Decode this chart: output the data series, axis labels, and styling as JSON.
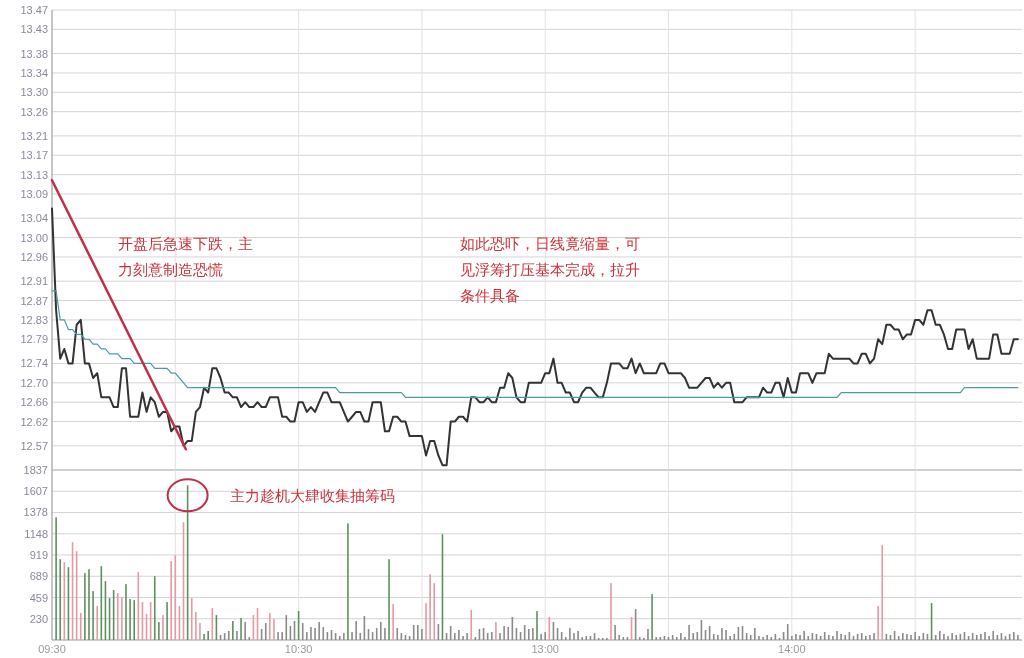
{
  "chart_data": [
    {
      "type": "line",
      "ylim": [
        12.52,
        13.47
      ],
      "yticks": [
        12.57,
        12.62,
        12.66,
        {
          "value": 12.7,
          "label": "12.70"
        },
        12.74,
        12.79,
        12.83,
        12.87,
        12.91,
        12.96,
        {
          "value": 13.0,
          "label": "13.00"
        },
        13.04,
        13.09,
        13.13,
        13.17,
        13.21,
        13.26,
        {
          "value": 13.3,
          "label": "13.30"
        },
        13.34,
        13.38,
        13.43,
        13.47
      ],
      "grid": true,
      "categories": [
        null,
        null,
        null,
        null,
        null,
        null,
        null,
        null,
        null,
        null,
        null,
        null,
        null,
        null,
        null,
        null,
        null,
        null,
        null,
        null,
        null,
        null,
        null,
        null,
        null,
        null,
        null,
        null,
        null,
        null,
        null,
        null,
        null,
        null,
        null,
        null,
        null,
        null,
        null,
        null,
        null,
        null,
        null,
        null,
        null,
        null,
        null,
        null,
        null,
        null,
        null,
        null,
        null,
        null,
        null,
        null,
        null,
        null,
        null,
        null,
        null,
        null,
        null,
        null,
        null,
        null,
        null,
        null,
        null,
        null,
        null,
        null,
        null,
        null,
        null,
        null,
        null,
        null,
        null,
        null,
        null,
        null,
        null,
        null,
        null,
        null,
        null,
        null,
        null,
        null,
        null,
        null,
        null,
        null,
        null,
        null,
        null,
        null,
        null,
        null,
        null,
        null,
        null,
        null,
        null,
        null,
        null,
        null,
        null,
        null,
        null,
        null,
        null,
        null,
        null,
        null,
        null,
        null,
        null,
        null,
        null,
        null,
        null,
        null,
        null,
        null,
        null,
        null,
        null,
        null,
        null,
        null,
        null,
        null,
        null,
        null,
        null,
        null,
        null,
        null,
        null,
        null,
        null,
        null,
        null,
        null,
        null,
        null,
        null,
        null,
        null,
        null,
        null,
        null,
        null,
        null,
        null,
        null,
        null,
        null,
        null,
        null,
        null,
        null,
        null,
        null,
        null,
        null,
        null,
        null,
        null,
        null,
        null,
        null,
        null,
        null,
        null,
        null,
        null,
        null,
        null,
        null,
        null,
        null,
        null,
        null,
        null,
        null,
        null,
        null,
        null,
        null,
        null,
        null,
        null,
        null,
        null,
        null,
        null,
        null,
        null,
        null,
        null,
        null,
        null,
        null,
        null,
        null,
        null,
        null,
        null,
        null,
        null,
        null,
        null,
        null,
        null,
        null,
        null,
        null,
        null,
        null,
        null,
        null,
        null,
        null,
        null,
        null,
        null,
        null,
        null,
        null,
        null,
        null,
        null,
        null
      ],
      "series": [
        {
          "color": "#333333",
          "values": [
            13.06,
            12.85,
            12.75,
            12.77,
            12.74,
            12.74,
            12.82,
            12.83,
            12.74,
            12.74,
            12.71,
            12.72,
            12.67,
            12.67,
            12.67,
            12.65,
            12.65,
            12.73,
            12.73,
            12.63,
            12.63,
            12.63,
            12.68,
            12.64,
            12.67,
            12.66,
            12.63,
            12.64,
            12.64,
            12.6,
            12.61,
            12.61,
            12.57,
            12.58,
            12.58,
            12.64,
            12.65,
            12.69,
            12.68,
            12.73,
            12.73,
            12.71,
            12.68,
            12.68,
            12.67,
            12.67,
            12.65,
            12.66,
            12.65,
            12.65,
            12.66,
            12.65,
            12.65,
            12.67,
            12.67,
            12.67,
            12.63,
            12.63,
            12.62,
            12.62,
            12.66,
            12.66,
            12.64,
            12.65,
            12.64,
            12.66,
            12.68,
            12.68,
            12.66,
            12.66,
            12.66,
            12.64,
            12.62,
            12.63,
            12.64,
            12.64,
            12.62,
            12.62,
            12.66,
            12.66,
            12.66,
            12.6,
            12.6,
            12.63,
            12.63,
            12.62,
            12.62,
            12.59,
            12.59,
            12.59,
            12.59,
            12.55,
            12.58,
            12.58,
            12.55,
            12.53,
            12.53,
            12.62,
            12.62,
            12.63,
            12.63,
            12.62,
            12.67,
            12.67,
            12.66,
            12.66,
            12.67,
            12.66,
            12.66,
            12.69,
            12.69,
            12.72,
            12.71,
            12.67,
            12.66,
            12.66,
            12.7,
            12.7,
            12.7,
            12.7,
            12.72,
            12.72,
            12.75,
            12.7,
            12.7,
            12.68,
            12.68,
            12.66,
            12.66,
            12.68,
            12.69,
            12.69,
            12.68,
            12.67,
            12.67,
            12.7,
            12.74,
            12.74,
            12.74,
            12.73,
            12.73,
            12.75,
            12.72,
            12.74,
            12.72,
            12.72,
            12.72,
            12.72,
            12.74,
            12.74,
            12.72,
            12.72,
            12.72,
            12.72,
            12.71,
            12.69,
            12.69,
            12.69,
            12.7,
            12.71,
            12.71,
            12.69,
            12.7,
            12.69,
            12.7,
            12.7,
            12.66,
            12.66,
            12.66,
            12.67,
            12.67,
            12.67,
            12.67,
            12.69,
            12.68,
            12.68,
            12.7,
            12.7,
            12.67,
            12.71,
            12.68,
            12.68,
            12.72,
            12.72,
            12.72,
            12.7,
            12.72,
            12.72,
            12.72,
            12.76,
            12.75,
            12.75,
            12.75,
            12.75,
            12.75,
            12.74,
            12.74,
            12.76,
            12.76,
            12.74,
            12.75,
            12.79,
            12.78,
            12.82,
            12.82,
            12.81,
            12.81,
            12.79,
            12.8,
            12.8,
            12.83,
            12.83,
            12.82,
            12.85,
            12.85,
            12.82,
            12.82,
            12.8,
            12.77,
            12.77,
            12.81,
            12.81,
            12.81,
            12.77,
            12.79,
            12.75,
            12.75,
            12.75,
            12.75,
            12.8,
            12.8,
            12.76,
            12.76,
            12.76,
            12.79,
            12.79
          ]
        },
        {
          "color": "#4a9aa8",
          "values": [
            12.89,
            12.89,
            12.83,
            12.83,
            12.81,
            12.81,
            12.8,
            12.8,
            12.79,
            12.79,
            12.78,
            12.78,
            12.77,
            12.77,
            12.76,
            12.76,
            12.76,
            12.75,
            12.75,
            12.75,
            12.74,
            12.74,
            12.74,
            12.74,
            12.74,
            12.73,
            12.73,
            12.73,
            12.73,
            12.72,
            12.72,
            12.71,
            12.7,
            12.69,
            12.69,
            12.69,
            12.69,
            12.69,
            12.69,
            12.69,
            12.69,
            12.69,
            12.69,
            12.69,
            12.69,
            12.69,
            12.69,
            12.69,
            12.69,
            12.69,
            12.69,
            12.69,
            12.69,
            12.69,
            12.69,
            12.69,
            12.69,
            12.69,
            12.69,
            12.69,
            12.69,
            12.69,
            12.69,
            12.69,
            12.69,
            12.69,
            12.69,
            12.69,
            12.69,
            12.69,
            12.68,
            12.68,
            12.68,
            12.68,
            12.68,
            12.68,
            12.68,
            12.68,
            12.68,
            12.68,
            12.68,
            12.68,
            12.68,
            12.68,
            12.68,
            12.68,
            12.67,
            12.67,
            12.67,
            12.67,
            12.67,
            12.67,
            12.67,
            12.67,
            12.67,
            12.67,
            12.67,
            12.67,
            12.67,
            12.67,
            12.67,
            12.67,
            12.67,
            12.67,
            12.67,
            12.67,
            12.67,
            12.67,
            12.67,
            12.67,
            12.67,
            12.67,
            12.67,
            12.67,
            12.67,
            12.67,
            12.67,
            12.67,
            12.67,
            12.67,
            12.67,
            12.67,
            12.67,
            12.67,
            12.67,
            12.67,
            12.67,
            12.67,
            12.67,
            12.67,
            12.67,
            12.67,
            12.67,
            12.67,
            12.67,
            12.67,
            12.67,
            12.67,
            12.67,
            12.67,
            12.67,
            12.67,
            12.67,
            12.67,
            12.67,
            12.67,
            12.67,
            12.67,
            12.67,
            12.67,
            12.67,
            12.67,
            12.67,
            12.67,
            12.67,
            12.67,
            12.67,
            12.67,
            12.67,
            12.67,
            12.67,
            12.67,
            12.67,
            12.67,
            12.67,
            12.67,
            12.67,
            12.67,
            12.67,
            12.67,
            12.67,
            12.67,
            12.67,
            12.67,
            12.67,
            12.67,
            12.67,
            12.67,
            12.67,
            12.67,
            12.67,
            12.67,
            12.67,
            12.67,
            12.67,
            12.67,
            12.67,
            12.67,
            12.67,
            12.67,
            12.67,
            12.67,
            12.68,
            12.68,
            12.68,
            12.68,
            12.68,
            12.68,
            12.68,
            12.68,
            12.68,
            12.68,
            12.68,
            12.68,
            12.68,
            12.68,
            12.68,
            12.68,
            12.68,
            12.68,
            12.68,
            12.68,
            12.68,
            12.68,
            12.68,
            12.68,
            12.68,
            12.68,
            12.68,
            12.68,
            12.68,
            12.68,
            12.69,
            12.69,
            12.69,
            12.69,
            12.69,
            12.69,
            12.69,
            12.69,
            12.69,
            12.69,
            12.69,
            12.69,
            12.69,
            12.69
          ]
        }
      ],
      "annotations": [
        "开盘后急速下跌，主力刻意制造恐慌",
        "如此恐吓，日线竟缩量，可见浮筹打压基本完成，拉升条件具备"
      ]
    },
    {
      "type": "bar",
      "ylim": [
        0,
        1837
      ],
      "yticks": [
        230,
        459,
        689,
        919,
        1148,
        1378,
        1607,
        1837
      ],
      "grid": true,
      "categories": [
        "09:30",
        null,
        null,
        null,
        null,
        null,
        null,
        null,
        null,
        null,
        null,
        null,
        null,
        null,
        null,
        null,
        null,
        null,
        null,
        null,
        null,
        null,
        null,
        null,
        null,
        null,
        null,
        null,
        null,
        null,
        null,
        null,
        null,
        null,
        null,
        null,
        null,
        null,
        null,
        null,
        null,
        null,
        null,
        null,
        null,
        null,
        null,
        null,
        null,
        null,
        null,
        null,
        null,
        null,
        null,
        null,
        null,
        null,
        null,
        null,
        "10:30",
        null,
        null,
        null,
        null,
        null,
        null,
        null,
        null,
        null,
        null,
        null,
        null,
        null,
        null,
        null,
        null,
        null,
        null,
        null,
        null,
        null,
        null,
        null,
        null,
        null,
        null,
        null,
        null,
        null,
        null,
        null,
        null,
        null,
        null,
        null,
        null,
        null,
        null,
        null,
        null,
        null,
        null,
        null,
        null,
        null,
        null,
        null,
        null,
        null,
        null,
        null,
        null,
        null,
        null,
        null,
        null,
        null,
        null,
        null,
        "13:00",
        null,
        null,
        null,
        null,
        null,
        null,
        null,
        null,
        null,
        null,
        null,
        null,
        null,
        null,
        null,
        null,
        null,
        null,
        null,
        null,
        null,
        null,
        null,
        null,
        null,
        null,
        null,
        null,
        null,
        null,
        null,
        null,
        null,
        null,
        null,
        null,
        null,
        null,
        null,
        null,
        null,
        null,
        null,
        null,
        null,
        null,
        null,
        null,
        null,
        null,
        null,
        null,
        null,
        null,
        null,
        null,
        null,
        null,
        null,
        "14:00",
        null,
        null,
        null,
        null,
        null,
        null,
        null,
        null,
        null,
        null,
        null,
        null,
        null,
        null,
        null,
        null,
        null,
        null,
        null,
        null,
        null,
        null,
        null,
        null,
        null,
        null,
        null,
        null,
        null,
        null,
        null,
        null,
        null,
        null,
        null,
        null,
        null,
        null,
        null,
        null,
        null,
        null,
        null,
        null,
        null,
        null,
        null,
        null,
        null,
        null,
        null,
        null,
        null,
        null,
        null
      ],
      "values": [
        null,
        1326,
        873,
        841,
        787,
        1057,
        959,
        291,
        722,
        765,
        528,
        367,
        798,
        636,
        453,
        539,
        507,
        464,
        604,
        442,
        431,
        733,
        410,
        280,
        410,
        690,
        194,
        269,
        410,
        852,
        916,
        367,
        1272,
        1671,
        453,
        302,
        183,
        65,
        97,
        345,
        269,
        54,
        75,
        97,
        205,
        97,
        237,
        194,
        32,
        269,
        345,
        119,
        183,
        291,
        226,
        86,
        86,
        269,
        151,
        205,
        313,
        183,
        86,
        140,
        129,
        194,
        140,
        86,
        108,
        75,
        43,
        75,
        1261,
        86,
        205,
        75,
        259,
        119,
        86,
        129,
        194,
        129,
        873,
        388,
        129,
        75,
        54,
        43,
        162,
        162,
        119,
        399,
        711,
        614,
        172,
        1143,
        75,
        151,
        75,
        108,
        43,
        75,
        323,
        32,
        119,
        129,
        75,
        86,
        194,
        75,
        151,
        140,
        248,
        129,
        86,
        162,
        119,
        129,
        313,
        65,
        86,
        248,
        194,
        129,
        86,
        32,
        129,
        75,
        97,
        32,
        43,
        43,
        75,
        22,
        22,
        22,
        614,
        162,
        54,
        32,
        32,
        248,
        334,
        32,
        22,
        119,
        496,
        32,
        32,
        43,
        32,
        54,
        32,
        75,
        32,
        162,
        75,
        86,
        216,
        108,
        151,
        65,
        54,
        129,
        108,
        43,
        65,
        140,
        151,
        75,
        54,
        129,
        43,
        32,
        54,
        32,
        65,
        22,
        86,
        172,
        43,
        65,
        54,
        97,
        43,
        75,
        65,
        43,
        86,
        54,
        43,
        97,
        65,
        54,
        86,
        43,
        65,
        75,
        43,
        54,
        75,
        367,
        1024,
        65,
        54,
        97,
        43,
        75,
        65,
        54,
        86,
        43,
        75,
        65,
        399,
        54,
        97,
        65,
        43,
        75,
        54,
        65,
        86,
        43,
        75,
        54,
        65,
        86,
        43,
        97,
        54,
        75,
        43,
        65,
        86,
        54
      ],
      "colors": [
        null,
        "#5f8f5f",
        "#5f8f5f",
        "#e39aa3",
        "#5f8f5f",
        "#e39aa3",
        "#e39aa3",
        "#e39aa3",
        "#5f8f5f",
        "#5f8f5f",
        "#5f8f5f",
        "#e39aa3",
        "#5f8f5f",
        "#5f8f5f",
        "#5f8f5f",
        "#5f8f5f",
        "#e39aa3",
        "#e39aa3",
        "#5f8f5f",
        "#5f8f5f",
        "#5f8f5f",
        "#e39aa3",
        "#e39aa3",
        "#e39aa3",
        "#e39aa3",
        "#5f8f5f",
        "#5f8f5f",
        "#e39aa3",
        "#5f8f5f",
        "#e39aa3",
        "#e39aa3",
        "#e39aa3",
        "#e39aa3",
        "#5f8f5f",
        "#e39aa3",
        "#e39aa3",
        "#e39aa3",
        "#5f8f5f",
        "#5f8f5f",
        "#e39aa3",
        "#5f8f5f",
        "#8a8a8a",
        "#8a8a8a",
        "#8a8a8a",
        "#5f8f5f",
        "#8a8a8a",
        "#5f8f5f",
        "#8a8a8a",
        "#8a8a8a",
        "#e39aa3",
        "#e39aa3",
        "#8a8a8a",
        "#8a8a8a",
        "#e39aa3",
        "#e39aa3",
        "#8a8a8a",
        "#8a8a8a",
        "#8a8a8a",
        "#8a8a8a",
        "#8a8a8a",
        "#5f8f5f",
        "#8a8a8a",
        "#8a8a8a",
        "#8a8a8a",
        "#8a8a8a",
        "#8a8a8a",
        "#8a8a8a",
        "#8a8a8a",
        "#8a8a8a",
        "#8a8a8a",
        "#8a8a8a",
        "#8a8a8a",
        "#5f8f5f",
        "#8a8a8a",
        "#8a8a8a",
        "#8a8a8a",
        "#8a8a8a",
        "#8a8a8a",
        "#8a8a8a",
        "#8a8a8a",
        "#8a8a8a",
        "#8a8a8a",
        "#5f8f5f",
        "#e39aa3",
        "#8a8a8a",
        "#8a8a8a",
        "#8a8a8a",
        "#8a8a8a",
        "#8a8a8a",
        "#8a8a8a",
        "#8a8a8a",
        "#e39aa3",
        "#e39aa3",
        "#e39aa3",
        "#8a8a8a",
        "#5f8f5f",
        "#8a8a8a",
        "#8a8a8a",
        "#8a8a8a",
        "#8a8a8a",
        "#8a8a8a",
        "#8a8a8a",
        "#e39aa3",
        "#8a8a8a",
        "#8a8a8a",
        "#8a8a8a",
        "#8a8a8a",
        "#8a8a8a",
        "#e39aa3",
        "#8a8a8a",
        "#8a8a8a",
        "#8a8a8a",
        "#8a8a8a",
        "#8a8a8a",
        "#8a8a8a",
        "#8a8a8a",
        "#8a8a8a",
        "#8a8a8a",
        "#5f8f5f",
        "#8a8a8a",
        "#8a8a8a",
        "#e39aa3",
        "#8a8a8a",
        "#8a8a8a",
        "#8a8a8a",
        "#8a8a8a",
        "#8a8a8a",
        "#8a8a8a",
        "#8a8a8a",
        "#8a8a8a",
        "#8a8a8a",
        "#8a8a8a",
        "#8a8a8a",
        "#8a8a8a",
        "#8a8a8a",
        "#8a8a8a",
        "#e39aa3",
        "#8a8a8a",
        "#8a8a8a",
        "#8a8a8a",
        "#8a8a8a",
        "#e39aa3",
        "#8a8a8a",
        "#8a8a8a",
        "#8a8a8a",
        "#8a8a8a",
        "#5f8f5f",
        "#8a8a8a",
        "#8a8a8a",
        "#8a8a8a",
        "#8a8a8a",
        "#8a8a8a",
        "#8a8a8a",
        "#8a8a8a",
        "#8a8a8a",
        "#8a8a8a",
        "#8a8a8a",
        "#8a8a8a",
        "#8a8a8a",
        "#8a8a8a",
        "#8a8a8a",
        "#8a8a8a",
        "#8a8a8a",
        "#8a8a8a",
        "#8a8a8a",
        "#8a8a8a",
        "#8a8a8a",
        "#8a8a8a",
        "#8a8a8a",
        "#8a8a8a",
        "#8a8a8a",
        "#8a8a8a",
        "#8a8a8a",
        "#8a8a8a",
        "#8a8a8a",
        "#8a8a8a",
        "#8a8a8a",
        "#8a8a8a",
        "#8a8a8a",
        "#8a8a8a",
        "#8a8a8a",
        "#8a8a8a",
        "#8a8a8a",
        "#8a8a8a",
        "#8a8a8a",
        "#8a8a8a",
        "#8a8a8a",
        "#8a8a8a",
        "#8a8a8a",
        "#8a8a8a",
        "#8a8a8a",
        "#8a8a8a",
        "#8a8a8a",
        "#8a8a8a",
        "#8a8a8a",
        "#8a8a8a",
        "#8a8a8a",
        "#8a8a8a",
        "#8a8a8a",
        "#8a8a8a",
        "#8a8a8a",
        "#e39aa3",
        "#e39aa3",
        "#8a8a8a",
        "#8a8a8a",
        "#8a8a8a",
        "#8a8a8a",
        "#8a8a8a",
        "#8a8a8a",
        "#8a8a8a",
        "#8a8a8a",
        "#8a8a8a",
        "#8a8a8a",
        "#8a8a8a",
        "#5f8f5f",
        "#8a8a8a",
        "#8a8a8a",
        "#8a8a8a",
        "#8a8a8a",
        "#8a8a8a",
        "#8a8a8a",
        "#8a8a8a",
        "#8a8a8a",
        "#8a8a8a",
        "#8a8a8a",
        "#8a8a8a",
        "#8a8a8a",
        "#8a8a8a",
        "#8a8a8a",
        "#8a8a8a",
        "#8a8a8a",
        "#8a8a8a",
        "#8a8a8a",
        "#8a8a8a",
        "#8a8a8a",
        "#8a8a8a"
      ],
      "annotations": [
        "主力趁机大肆收集抽筹码"
      ]
    }
  ]
}
